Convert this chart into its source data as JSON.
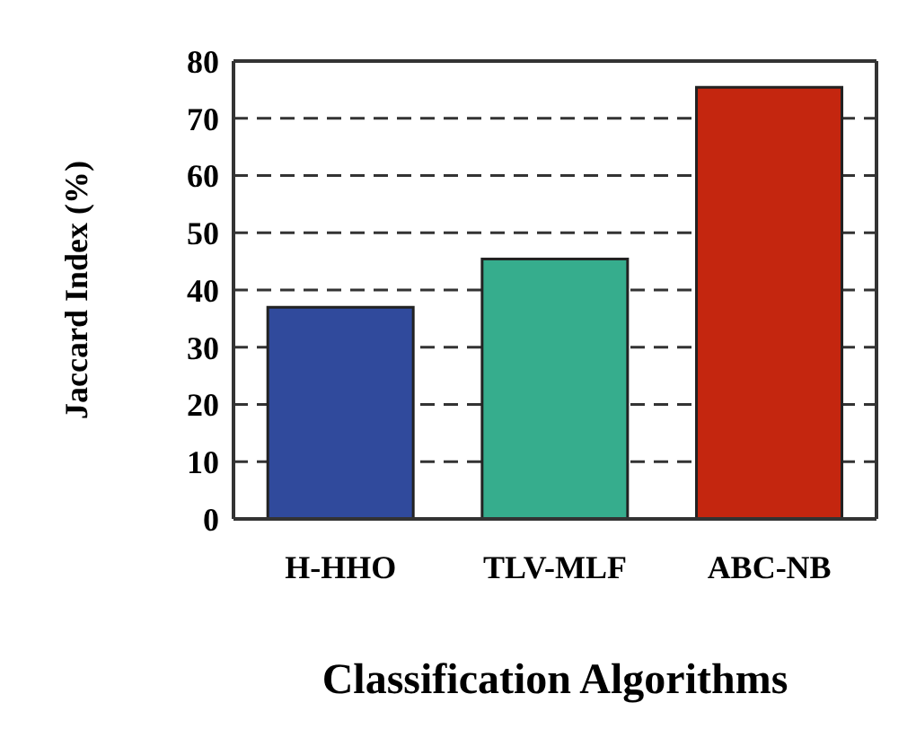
{
  "chart_data": {
    "type": "bar",
    "xlabel": "Classification Algorithms",
    "ylabel": "Jaccard Index (%)",
    "categories": [
      "H-HHO",
      "TLV-MLF",
      "ABC-NB"
    ],
    "values": [
      37,
      45.4,
      75.4
    ],
    "colors": [
      "#304a9c",
      "#36ad8d",
      "#c4260f"
    ],
    "ylim": [
      0,
      80
    ],
    "yticks": [
      0,
      10,
      20,
      30,
      40,
      50,
      60,
      70,
      80
    ],
    "grid": "y"
  }
}
